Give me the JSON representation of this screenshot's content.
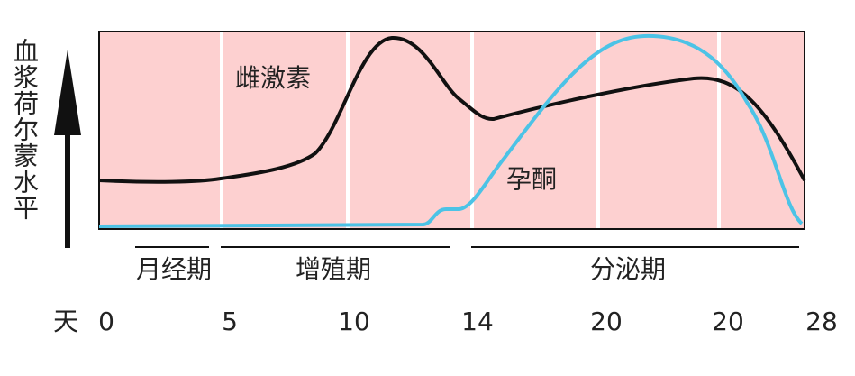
{
  "y_axis_label": "血浆荷尔蒙水平",
  "x_axis": {
    "unit": "天",
    "ticks": [
      "0",
      "5",
      "10",
      "14",
      "20",
      "20",
      "28"
    ]
  },
  "phases": [
    "月经期",
    "增殖期",
    "分泌期"
  ],
  "curves": [
    {
      "label": "雌激素"
    },
    {
      "label": "孕酮"
    }
  ]
}
